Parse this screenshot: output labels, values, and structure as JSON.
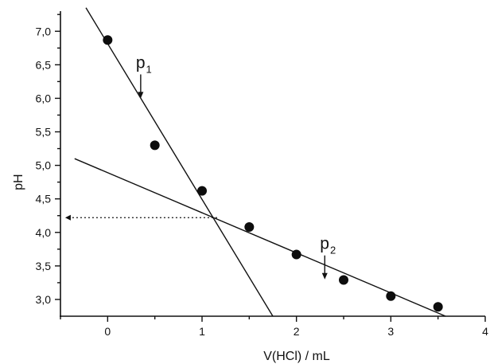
{
  "chart_data": {
    "type": "scatter",
    "xlabel": "V(HCl) / mL",
    "ylabel": "pH",
    "xlim": [
      -0.5,
      4
    ],
    "ylim": [
      2.75,
      7.3
    ],
    "xticks": [
      0,
      1,
      2,
      3,
      4
    ],
    "xtick_labels": [
      "0",
      "1",
      "2",
      "3",
      "4"
    ],
    "yticks": [
      3.0,
      3.5,
      4.0,
      4.5,
      5.0,
      5.5,
      6.0,
      6.5,
      7.0
    ],
    "ytick_labels": [
      "3,0",
      "3,5",
      "4,0",
      "4,5",
      "5,0",
      "5,5",
      "6,0",
      "6,5",
      "7,0"
    ],
    "series": [
      {
        "x": [
          0,
          0.5,
          1,
          1.5,
          2,
          2.5,
          3,
          3.5
        ],
        "y": [
          6.87,
          5.3,
          4.62,
          4.08,
          3.67,
          3.29,
          3.05,
          2.89
        ]
      }
    ],
    "fit_lines": [
      {
        "x": [
          -0.23,
          1.75
        ],
        "y": [
          7.35,
          2.75
        ]
      },
      {
        "x": [
          -0.35,
          3.58
        ],
        "y": [
          5.1,
          2.75
        ]
      }
    ],
    "intersection": {
      "x": 1.17,
      "y": 4.22
    },
    "guide_line": {
      "from_x": -0.45,
      "to_x": 1.17,
      "y": 4.22,
      "style": "dotted",
      "arrow": "left"
    },
    "annotations": [
      {
        "label": "p",
        "subscript": "1",
        "x": 0.35,
        "y": 6.0
      },
      {
        "label": "p",
        "subscript": "2",
        "x": 2.3,
        "y": 3.3
      }
    ],
    "grid": false,
    "legend": "none"
  }
}
